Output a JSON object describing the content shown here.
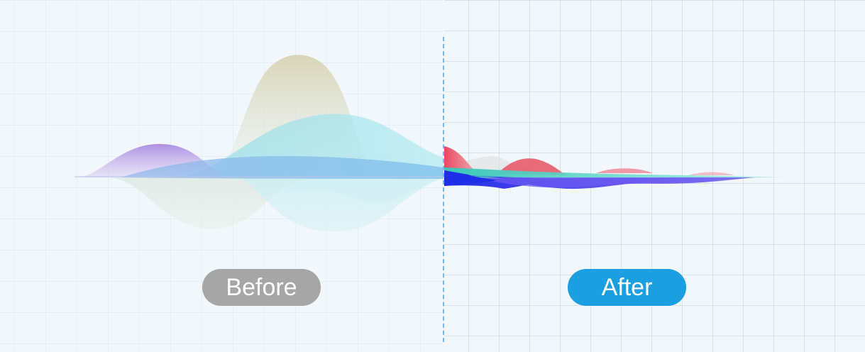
{
  "comparison": {
    "before_label": "Before",
    "after_label": "After"
  },
  "colors": {
    "background": "#f1f7fb",
    "before_pill": "#a6a6a6",
    "after_pill": "#1c9fe0",
    "divider": "#7fb6dc",
    "wave_purple": "#b39ae6",
    "wave_beige": "#d9d2b5",
    "wave_cyan": "#a6e3ea",
    "wave_blue": "#9fc3ec",
    "wave_red": "#e85a6a",
    "wave_deep_blue": "#2b2fe6",
    "wave_violet": "#6a5af0",
    "wave_teal": "#5fd9c8"
  }
}
